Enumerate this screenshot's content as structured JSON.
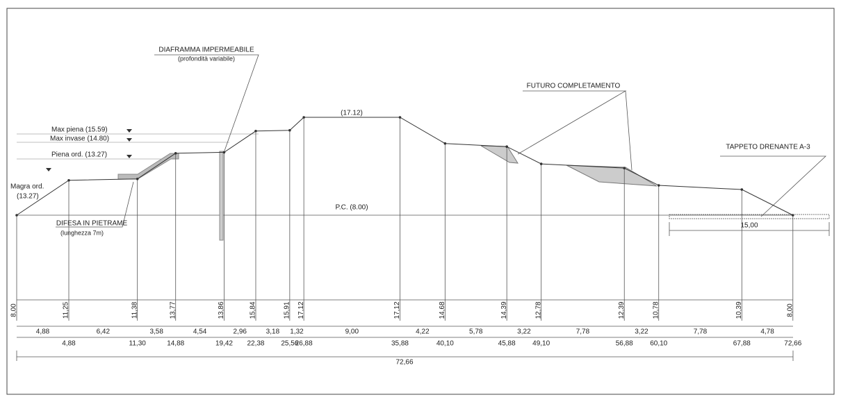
{
  "annotations": {
    "diaphragm": "DIAFRAMMA IMPERMEABILE",
    "diaphragm_note": "(profondità variabile)",
    "future": "FUTURO COMPLETAMENTO",
    "drain": "TAPPETO DRENANTE A-3",
    "max_flood": "Max piena  (15.59)",
    "max_reservoir": "Max invase  (14.80)",
    "ordinary_flood": "Piena ord.  (13.27)",
    "low_water": "Magra ord.",
    "low_water_level": "(13.27)",
    "crest": "(17.12)",
    "ground": "P.C.  (8.00)",
    "stone_defense": "DIFESA IN PIETRAME",
    "stone_defense_note": "(lunghezza 7m)",
    "drain_width": "15,00"
  },
  "stations": {
    "elevations": [
      "8,00",
      "11,25",
      "11,38",
      "13,77",
      "13,86",
      "15,84",
      "15,91",
      "17,12",
      "17,12",
      "14,68",
      "14,39",
      "12,78",
      "12,39",
      "10,78",
      "10,39",
      "8,00"
    ],
    "partials": [
      "4,88",
      "6,42",
      "3,58",
      "4,54",
      "2,96",
      "3,18",
      "1,32",
      "9,00",
      "4,22",
      "5,78",
      "3,22",
      "7,78",
      "3,22",
      "7,78",
      "4,78"
    ],
    "progressives": [
      "4,88",
      "11,30",
      "14,88",
      "19,42",
      "22,38",
      "25,56",
      "26,88",
      "35,88",
      "40,10",
      "45,88",
      "49,10",
      "56,88",
      "60,10",
      "67,88",
      "72,66"
    ],
    "total": "72,66"
  }
}
